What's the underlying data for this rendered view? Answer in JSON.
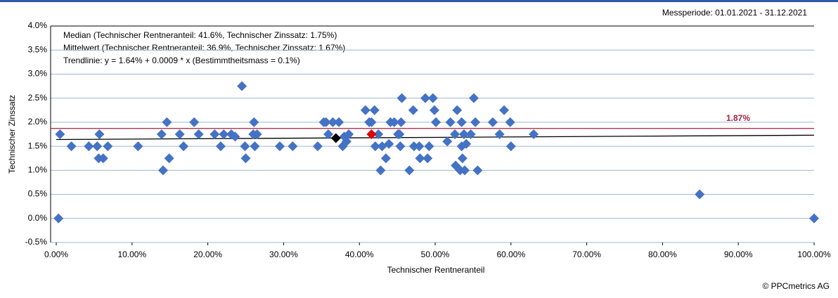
{
  "chart_data": {
    "type": "scatter",
    "header": "Messperiode: 01.01.2021 - 31.12.2021",
    "annotations": [
      "Median (Technischer Rentneranteil: 41.6%, Technischer Zinssatz: 1.75%)",
      "Mittelwert (Technischer Rentneranteil: 36.9%, Technischer Zinssatz: 1.67%)",
      "Trendlinie: y = 1.64% + 0.0009 * x (Bestimmtheitsmass = 0.1%)"
    ],
    "xlabel": "Technischer Rentneranteil",
    "ylabel": "Technischer Zinssatz",
    "footer": "© PPCmetrics AG",
    "color": "#4472c4",
    "x": [
      0.3,
      0.5,
      2,
      4.3,
      5.4,
      5.6,
      5.7,
      6.2,
      6.8,
      10.8,
      13.9,
      14.1,
      14.6,
      14.9,
      16.3,
      16.8,
      18.2,
      18.8,
      20.9,
      21.7,
      22.1,
      23.1,
      23.6,
      24.5,
      24.9,
      25,
      26,
      26.1,
      26.2,
      26.5,
      29.5,
      31.2,
      34.5,
      35.3,
      35.6,
      35.9,
      36.5,
      37.3,
      37.8,
      38.0,
      38.3,
      38.6,
      40.8,
      41.3,
      41.6,
      42.0,
      42.1,
      42.5,
      42.8,
      43.0,
      43.5,
      43.9,
      44.1,
      44.6,
      45.1,
      45.3,
      45.5,
      45.4,
      45.6,
      46.6,
      47.1,
      47.2,
      47.9,
      48.0,
      48.7,
      49.0,
      49.2,
      49.7,
      49.9,
      50.1,
      51.6,
      52.0,
      52.6,
      52.7,
      52.9,
      53.3,
      53.5,
      53.5,
      53.6,
      53.8,
      53.9,
      54.1,
      54.7,
      55.1,
      55.3,
      55.6,
      57.6,
      58.5,
      59.1,
      59.9,
      60.0,
      63.0,
      84.9,
      100
    ],
    "values": [
      0,
      1.75,
      1.5,
      1.5,
      1.5,
      1.25,
      1.75,
      1.25,
      1.5,
      1.5,
      1.75,
      1.0,
      2.0,
      1.25,
      1.75,
      1.5,
      2.0,
      1.75,
      1.75,
      1.5,
      1.75,
      1.75,
      1.7,
      2.75,
      1.5,
      1.25,
      1.75,
      2.0,
      1.5,
      1.75,
      1.5,
      1.5,
      1.5,
      2.0,
      2.0,
      1.75,
      2.0,
      2.0,
      1.5,
      1.7,
      1.6,
      1.75,
      2.25,
      2.0,
      2.0,
      2.25,
      1.5,
      1.75,
      1.0,
      1.5,
      1.25,
      1.55,
      2.0,
      2.0,
      1.75,
      1.75,
      2.0,
      1.5,
      2.5,
      1.0,
      2.25,
      1.5,
      1.5,
      1.25,
      2.5,
      1.25,
      1.5,
      2.5,
      2.25,
      2.0,
      1.6,
      2.0,
      1.75,
      1.1,
      2.25,
      1.0,
      2.0,
      1.5,
      1.25,
      1.75,
      1.0,
      1.55,
      1.75,
      2.5,
      2.0,
      1.0,
      2.0,
      1.75,
      2.25,
      2.0,
      1.5,
      1.75,
      0.5,
      0
    ],
    "highlights": [
      {
        "x": 41.6,
        "value": 1.75,
        "color": "#e00000"
      },
      {
        "x": 36.9,
        "value": 1.67,
        "color": "#000000"
      }
    ],
    "trendline": {
      "intercept": 1.64,
      "slope": 0.0009,
      "color": "#000000"
    },
    "reference_line": {
      "value": 1.87,
      "label": "1.87%",
      "color": "#a0203c"
    },
    "xlim": [
      0,
      100
    ],
    "ylim": [
      -0.5,
      4.0
    ],
    "xticks": [
      {
        "value": 0,
        "label": "0.00%"
      },
      {
        "value": 10,
        "label": "10.00%"
      },
      {
        "value": 20,
        "label": "20.00%"
      },
      {
        "value": 30,
        "label": "30.00%"
      },
      {
        "value": 40,
        "label": "40.00%"
      },
      {
        "value": 50,
        "label": "50.00%"
      },
      {
        "value": 60,
        "label": "60.00%"
      },
      {
        "value": 70,
        "label": "70.00%"
      },
      {
        "value": 80,
        "label": "80.00%"
      },
      {
        "value": 90,
        "label": "90.00%"
      },
      {
        "value": 100,
        "label": "100.00%"
      }
    ],
    "yticks": [
      {
        "value": -0.5,
        "label": "-0.5%"
      },
      {
        "value": 0,
        "label": "0.0%"
      },
      {
        "value": 0.5,
        "label": "0.5%"
      },
      {
        "value": 1.0,
        "label": "1.0%"
      },
      {
        "value": 1.5,
        "label": "1.5%"
      },
      {
        "value": 2.0,
        "label": "2.0%"
      },
      {
        "value": 2.5,
        "label": "2.5%"
      },
      {
        "value": 3.0,
        "label": "3.0%"
      },
      {
        "value": 3.5,
        "label": "3.5%"
      },
      {
        "value": 4.0,
        "label": "4.0%"
      }
    ],
    "grid": true
  }
}
